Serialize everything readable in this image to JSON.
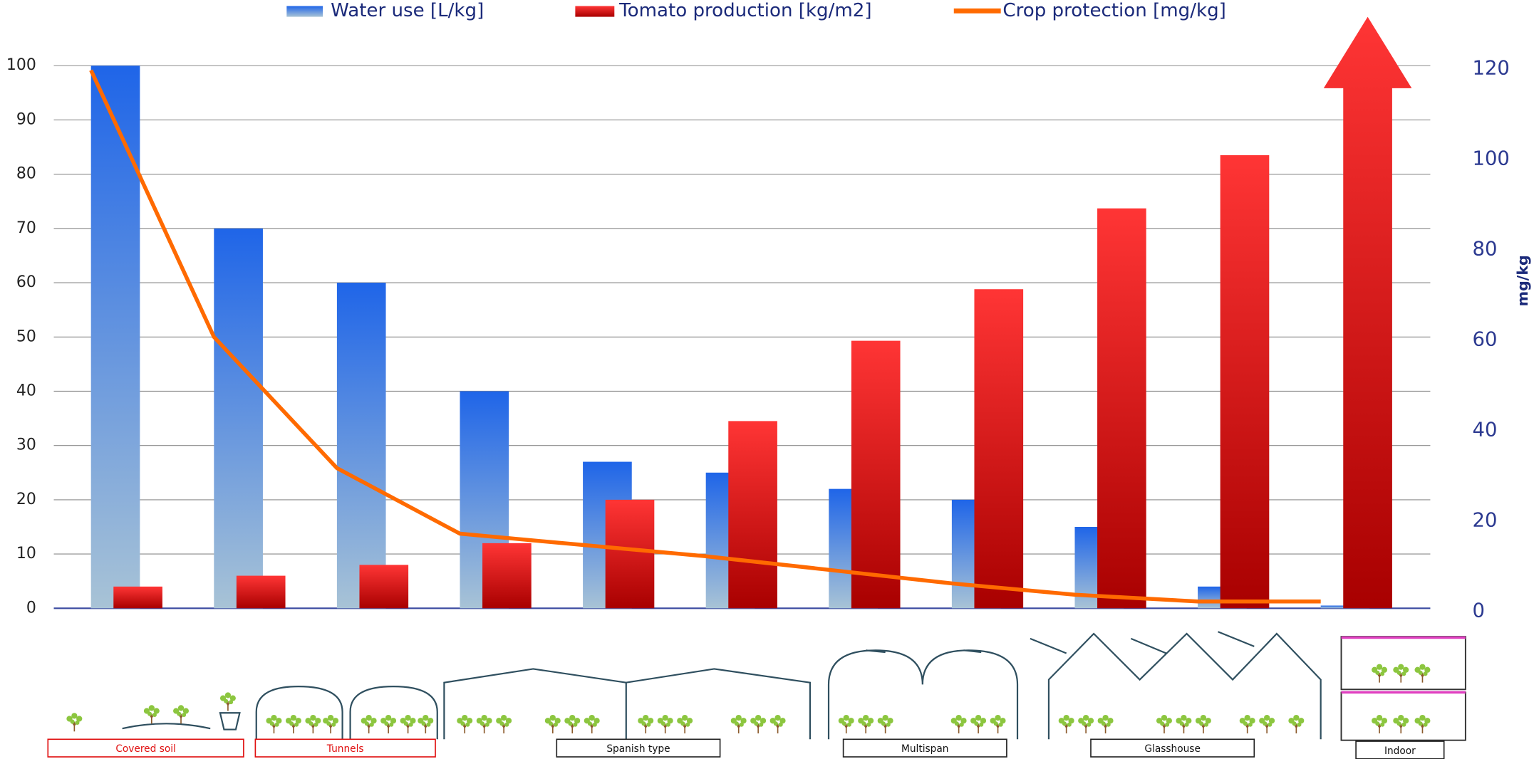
{
  "chart_data": {
    "type": "bar",
    "categories": [
      null,
      null,
      null,
      null,
      null,
      null,
      null,
      null,
      null,
      null,
      null
    ],
    "series": [
      {
        "name": "Water use [L/kg]",
        "type": "bar",
        "color": "#1f65e8",
        "values": [
          100,
          70,
          60,
          40,
          27,
          25,
          22,
          20,
          15,
          4,
          0.5
        ]
      },
      {
        "name": "Tomato production [kg/m2]",
        "type": "bar",
        "color": "#ff3535",
        "values": [
          4,
          6,
          8,
          12,
          20,
          34.5,
          49.3,
          58.8,
          73.7,
          83.5,
          109
        ]
      },
      {
        "name": "Crop protection [mg/kg]",
        "type": "line",
        "axis": "y2",
        "color": "#ff6a00",
        "values": [
          119,
          60,
          31,
          16.5,
          14,
          11.5,
          8.5,
          5.5,
          3,
          1.5,
          1.5
        ]
      }
    ],
    "ylim": [
      0,
      100
    ],
    "yticks": [
      0,
      10,
      20,
      30,
      40,
      50,
      60,
      70,
      80,
      90,
      100
    ],
    "y2lim": [
      0,
      120
    ],
    "y2ticks": [
      0,
      20,
      40,
      60,
      80,
      100,
      120
    ],
    "y2label": "mg/kg",
    "grid": true,
    "groups": [
      "Covered soil",
      "Tunnels",
      "Spanish type",
      "Multispan",
      "Glasshouse",
      "Indoor"
    ]
  }
}
